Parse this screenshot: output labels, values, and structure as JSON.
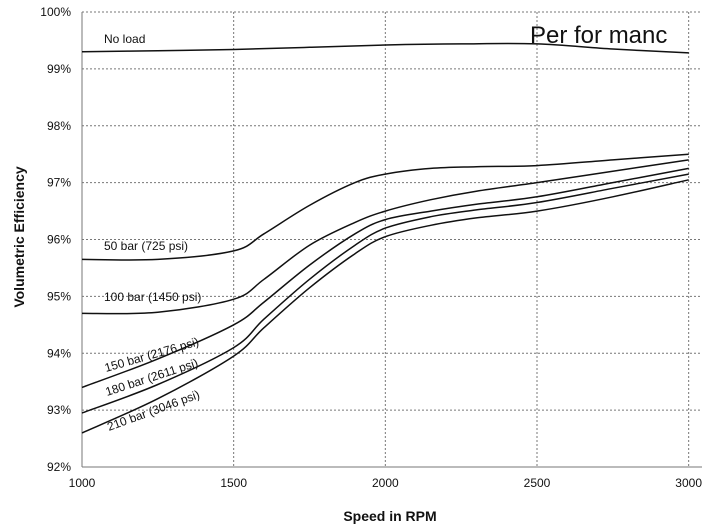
{
  "overlay_text": "Per for manc",
  "chart_data": {
    "type": "line",
    "xlabel": "Speed in RPM",
    "ylabel": "Volumetric Efficiency",
    "xlim": [
      1000,
      3000
    ],
    "ylim": [
      92,
      100
    ],
    "x_ticks": [
      "1000",
      "1500",
      "2000",
      "2500",
      "3000"
    ],
    "y_ticks": [
      "92%",
      "93%",
      "94%",
      "95%",
      "96%",
      "97%",
      "98%",
      "99%",
      "100%"
    ],
    "grid": true,
    "series": [
      {
        "name": "No load",
        "x": [
          1000,
          1250,
          1500,
          1750,
          2000,
          2250,
          2500,
          2750,
          3000
        ],
        "y": [
          99.3,
          99.32,
          99.34,
          99.38,
          99.42,
          99.44,
          99.44,
          99.35,
          99.28
        ]
      },
      {
        "name": "50 bar (725 psi)",
        "x": [
          1000,
          1250,
          1500,
          1600,
          1750,
          1900,
          2000,
          2150,
          2300,
          2500,
          2750,
          3000
        ],
        "y": [
          95.65,
          95.65,
          95.8,
          96.1,
          96.6,
          97.0,
          97.15,
          97.25,
          97.28,
          97.3,
          97.4,
          97.5
        ]
      },
      {
        "name": "100 bar (1450 psi)",
        "x": [
          1000,
          1250,
          1500,
          1600,
          1750,
          1900,
          2000,
          2150,
          2300,
          2500,
          2750,
          3000
        ],
        "y": [
          94.7,
          94.72,
          94.95,
          95.3,
          95.9,
          96.3,
          96.5,
          96.7,
          96.85,
          97.0,
          97.2,
          97.4
        ]
      },
      {
        "name": "150 bar (2176 psi)",
        "x": [
          1000,
          1250,
          1500,
          1600,
          1750,
          1900,
          2000,
          2150,
          2300,
          2500,
          2750,
          3000
        ],
        "y": [
          93.4,
          93.9,
          94.5,
          94.9,
          95.55,
          96.1,
          96.35,
          96.5,
          96.62,
          96.75,
          97.0,
          97.25
        ]
      },
      {
        "name": "180 bar (2611 psi)",
        "x": [
          1000,
          1250,
          1500,
          1600,
          1750,
          1900,
          2000,
          2150,
          2300,
          2500,
          2750,
          3000
        ],
        "y": [
          92.95,
          93.45,
          94.1,
          94.6,
          95.3,
          95.9,
          96.2,
          96.4,
          96.52,
          96.65,
          96.9,
          97.15
        ]
      },
      {
        "name": "210 bar (3046 psi)",
        "x": [
          1000,
          1250,
          1500,
          1600,
          1750,
          1900,
          2000,
          2150,
          2300,
          2500,
          2750,
          3000
        ],
        "y": [
          92.6,
          93.2,
          93.95,
          94.45,
          95.15,
          95.75,
          96.05,
          96.25,
          96.38,
          96.5,
          96.75,
          97.05
        ]
      }
    ]
  }
}
